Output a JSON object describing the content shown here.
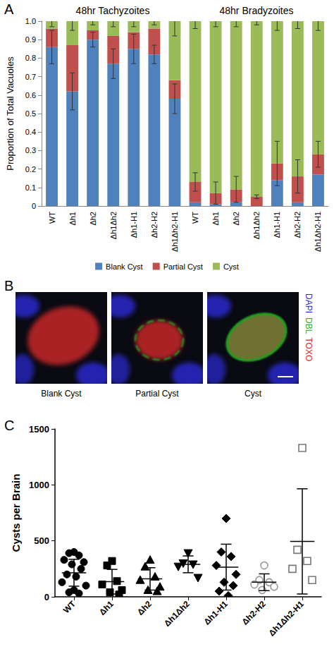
{
  "chart_data": [
    {
      "type": "bar",
      "y_label": "Proportion of Total Vacuoles",
      "annotations": [
        "48hr Tachyzoites",
        "48hr Bradyzoites"
      ],
      "categories": [
        "WT",
        "Δh1",
        "Δh2",
        "Δh1Δh2",
        "Δh1-H1",
        "Δh2-H2",
        "Δh1Δh2-H1",
        "WT",
        "Δh1",
        "Δh2",
        "Δh1Δh2",
        "Δh1-H1",
        "Δh2-H2",
        "Δh1Δh2-H1"
      ],
      "series": [
        {
          "name": "Blank Cyst",
          "color": "#4f81bd",
          "values": [
            0.86,
            0.62,
            0.9,
            0.77,
            0.85,
            0.82,
            0.58,
            0.02,
            0.01,
            0.02,
            0.0,
            0.14,
            0.02,
            0.17
          ],
          "errors": [
            0.09,
            0.1,
            0.04,
            0.08,
            0.08,
            0.05,
            0.08,
            null,
            null,
            null,
            null,
            null,
            null,
            null
          ]
        },
        {
          "name": "Partial Cyst",
          "color": "#c0504d",
          "values": [
            0.1,
            0.25,
            0.05,
            0.15,
            0.09,
            0.14,
            0.1,
            0.11,
            0.06,
            0.07,
            0.05,
            0.09,
            0.14,
            0.11
          ],
          "errors": [
            null,
            null,
            null,
            null,
            null,
            null,
            null,
            0.05,
            0.06,
            0.07,
            0.01,
            0.12,
            0.09,
            0.07
          ]
        },
        {
          "name": "Cyst",
          "color": "#9bbb59",
          "values": [
            0.04,
            0.13,
            0.05,
            0.08,
            0.06,
            0.04,
            0.32,
            0.87,
            0.93,
            0.91,
            0.95,
            0.77,
            0.84,
            0.72
          ],
          "errors": [
            0.03,
            0.05,
            0.02,
            0.03,
            0.03,
            0.02,
            0.08,
            0.04,
            0.03,
            0.03,
            0.02,
            0.05,
            0.04,
            0.05
          ]
        }
      ],
      "stacked": true,
      "ylim": [
        0,
        1
      ],
      "yticks": [
        0,
        0.1,
        0.2,
        0.3,
        0.4,
        0.5,
        0.6,
        0.7,
        0.8,
        0.9,
        {
          "value": 1,
          "label": "1.0"
        }
      ],
      "grid": false,
      "legend": "bottom"
    },
    {
      "type": "scatter",
      "y_label": "Cysts per Brain",
      "categories": [
        "WT",
        "Δh1",
        "Δh2",
        "Δh1Δh2",
        "Δh1-H1",
        "Δh2-H2",
        "Δh1Δh2-H1"
      ],
      "values": [
        [
          400,
          390,
          370,
          330,
          310,
          290,
          250,
          200,
          180,
          130,
          100,
          60,
          40,
          30
        ],
        [
          320,
          280,
          140,
          110,
          60,
          40,
          20
        ],
        [
          330,
          270,
          180,
          150,
          90,
          60,
          50
        ],
        [
          390,
          300,
          290,
          270,
          170
        ],
        [
          700,
          400,
          360,
          280,
          200,
          130,
          100,
          50,
          10
        ],
        [
          280,
          150,
          130,
          110,
          90,
          60
        ],
        [
          1330,
          420,
          320,
          250,
          150
        ]
      ],
      "mean": [
        215,
        135,
        160,
        290,
        265,
        130,
        495
      ],
      "sd": [
        120,
        110,
        100,
        75,
        205,
        75,
        470
      ],
      "colors": [
        "#000000",
        "#000000",
        "#000000",
        "#000000",
        "#000000",
        "#999999",
        "#777777"
      ],
      "markers": [
        "circle",
        "square",
        "triangle",
        "triangle-down",
        "diamond",
        "circle-open",
        "square-open"
      ],
      "ylim": [
        0,
        1500
      ],
      "yticks": [
        0,
        500,
        1000,
        1500
      ],
      "grid": false
    }
  ],
  "panel_letters": [
    "A",
    "B",
    "C"
  ],
  "images": {
    "labels": [
      "Blank Cyst",
      "Partial Cyst",
      "Cyst"
    ],
    "channels": [
      {
        "name": "DAPI",
        "color": "#2a2ad8"
      },
      {
        "name": "DBL",
        "color": "#22b022"
      },
      {
        "name": "TOXO",
        "color": "#e02a2a"
      }
    ]
  }
}
